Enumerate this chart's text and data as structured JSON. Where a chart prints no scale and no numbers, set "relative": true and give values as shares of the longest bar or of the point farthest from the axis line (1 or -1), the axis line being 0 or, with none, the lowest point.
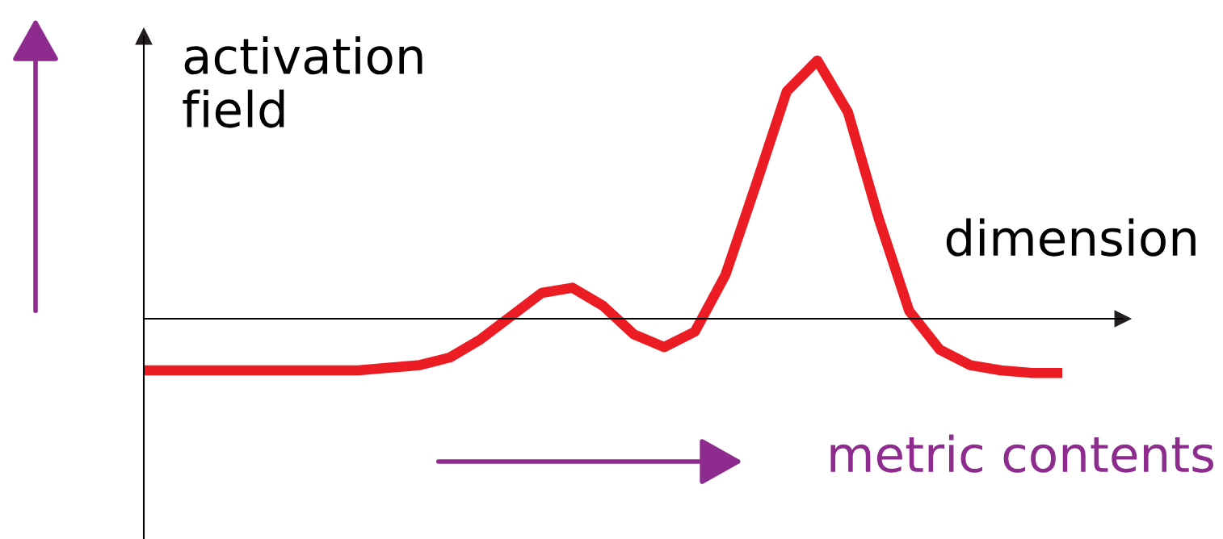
{
  "chart_data": {
    "type": "line",
    "relative": true,
    "tick_labels": false,
    "ylabel": "activation\nfield",
    "xlabel": "dimension",
    "annotations": [
      "metric contents"
    ],
    "categories": [
      null,
      null,
      null,
      null,
      null,
      null,
      null,
      null,
      null,
      null,
      null,
      null,
      null,
      null,
      null,
      null,
      null,
      null,
      null,
      null,
      null,
      null,
      null,
      null,
      null,
      null,
      null,
      null,
      null,
      null,
      null
    ],
    "series": [
      {
        "color": "#ec1c24",
        "values": [
          -0.2,
          -0.2,
          -0.2,
          -0.2,
          -0.2,
          -0.2,
          -0.2,
          -0.2,
          -0.19,
          -0.18,
          -0.15,
          -0.08,
          0.01,
          0.1,
          0.12,
          0.05,
          -0.06,
          -0.11,
          -0.05,
          0.17,
          0.52,
          0.88,
          1.0,
          0.8,
          0.39,
          0.03,
          -0.12,
          -0.18,
          -0.2,
          -0.21,
          -0.21
        ]
      }
    ]
  }
}
